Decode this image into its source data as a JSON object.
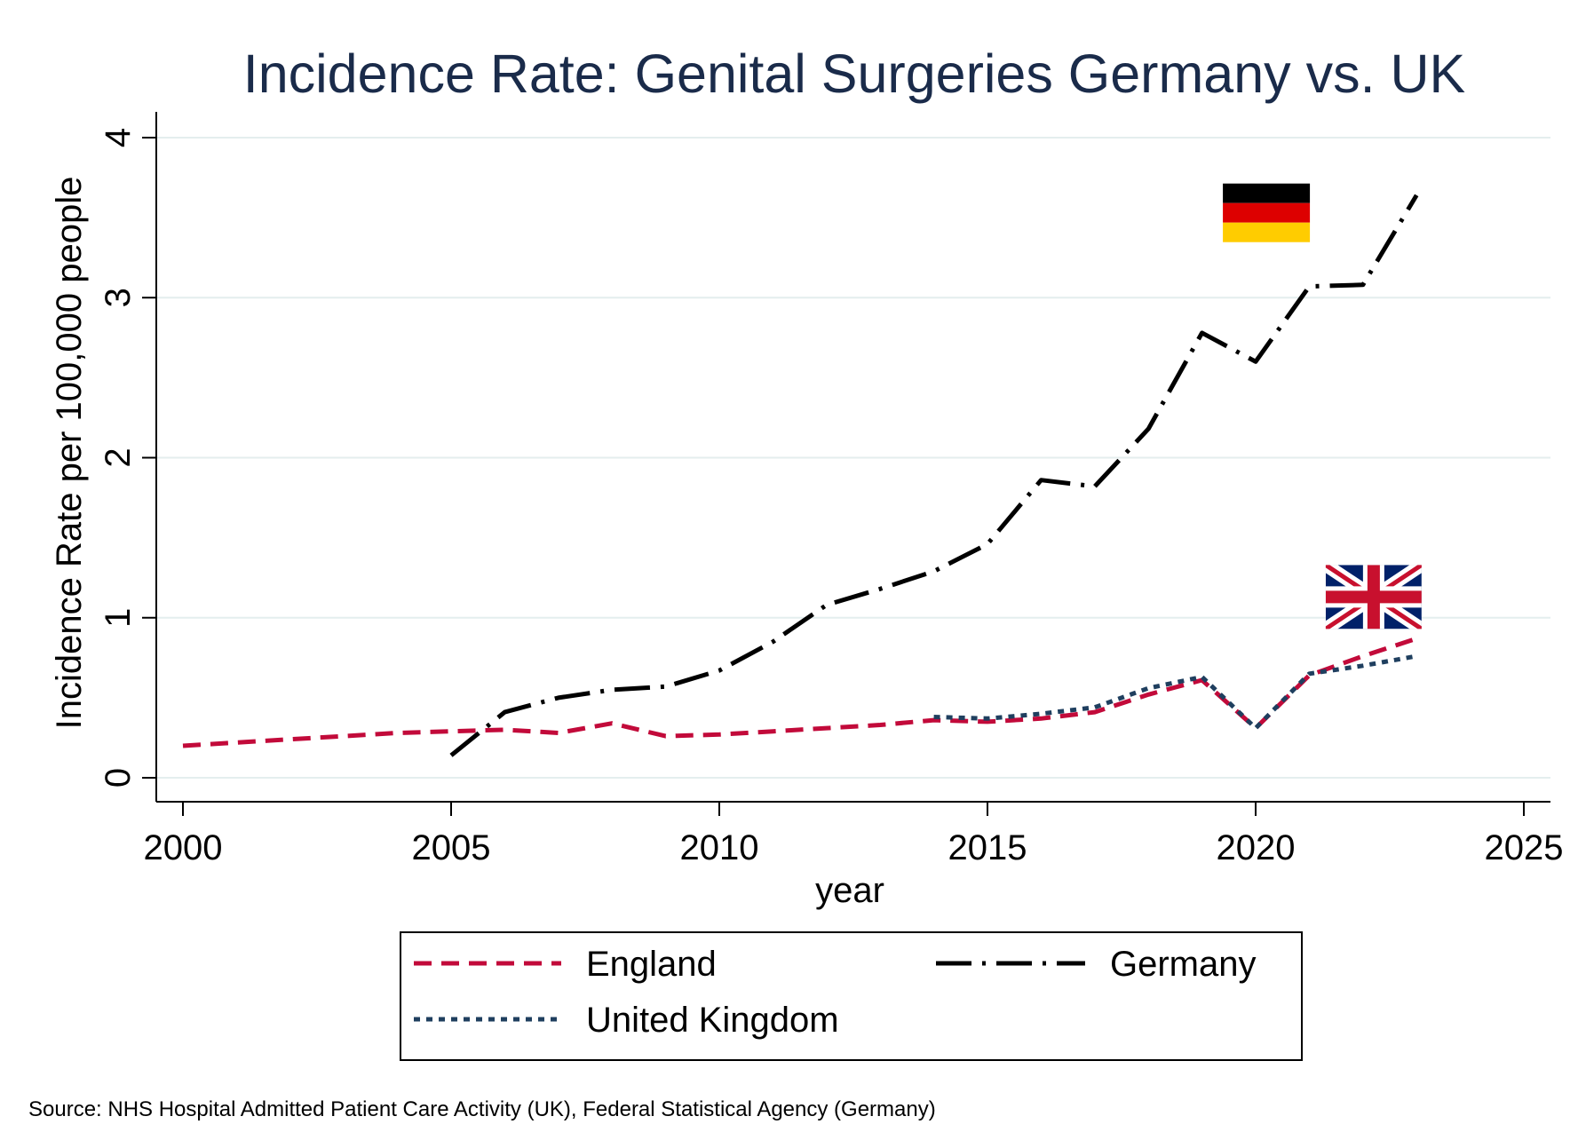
{
  "chart_data": {
    "type": "line",
    "title": "Incidence Rate: Genital Surgeries Germany vs. UK",
    "xlabel": "year",
    "ylabel": "Incidence Rate per 100,000 people",
    "xlim": [
      2000,
      2025
    ],
    "ylim": [
      0,
      4
    ],
    "x_ticks": [
      "2000",
      "2005",
      "2010",
      "2015",
      "2020",
      "2025"
    ],
    "y_ticks": [
      "0",
      "1",
      "2",
      "3",
      "4"
    ],
    "grid": "horizontal",
    "legend_position": "bottom",
    "note": "Source: NHS Hospital Admitted Patient Care Activity (UK), Federal Statistical Agency (Germany)",
    "legend": [
      "England",
      "Germany",
      "United Kingdom"
    ],
    "series": [
      {
        "name": "England",
        "color": "#c20a3a",
        "style": "dashed",
        "x": [
          2000,
          2001,
          2002,
          2003,
          2004,
          2005,
          2006,
          2007,
          2008,
          2009,
          2010,
          2011,
          2012,
          2013,
          2014,
          2015,
          2016,
          2017,
          2018,
          2019,
          2020,
          2021,
          2022,
          2023
        ],
        "y": [
          0.2,
          0.22,
          0.24,
          0.26,
          0.28,
          0.29,
          0.3,
          0.28,
          0.34,
          0.26,
          0.27,
          0.29,
          0.31,
          0.33,
          0.36,
          0.35,
          0.37,
          0.41,
          0.52,
          0.61,
          0.31,
          0.64,
          0.76,
          0.87
        ]
      },
      {
        "name": "Germany",
        "color": "#000000",
        "style": "dash-dot",
        "x": [
          2005,
          2006,
          2007,
          2008,
          2009,
          2010,
          2011,
          2012,
          2013,
          2014,
          2015,
          2016,
          2017,
          2018,
          2019,
          2020,
          2021,
          2022,
          2023
        ],
        "y": [
          0.14,
          0.41,
          0.5,
          0.55,
          0.57,
          0.67,
          0.85,
          1.08,
          1.18,
          1.29,
          1.46,
          1.86,
          1.82,
          2.18,
          2.78,
          2.6,
          3.07,
          3.08,
          3.64
        ]
      },
      {
        "name": "United Kingdom",
        "color": "#1f3f5f",
        "style": "dotted",
        "x": [
          2014,
          2015,
          2016,
          2017,
          2018,
          2019,
          2020,
          2021,
          2022,
          2023
        ],
        "y": [
          0.38,
          0.37,
          0.4,
          0.44,
          0.56,
          0.63,
          0.31,
          0.65,
          0.7,
          0.76
        ]
      }
    ]
  },
  "flags": {
    "germany": {
      "icon": "germany-flag-icon",
      "colors": [
        "#000000",
        "#dd0000",
        "#ffcc00"
      ],
      "x": 2020.2,
      "y": 3.53
    },
    "uk": {
      "icon": "uk-flag-icon",
      "colors": [
        "#012169",
        "#ffffff",
        "#c8102e"
      ],
      "x": 2022.2,
      "y": 1.13
    }
  }
}
